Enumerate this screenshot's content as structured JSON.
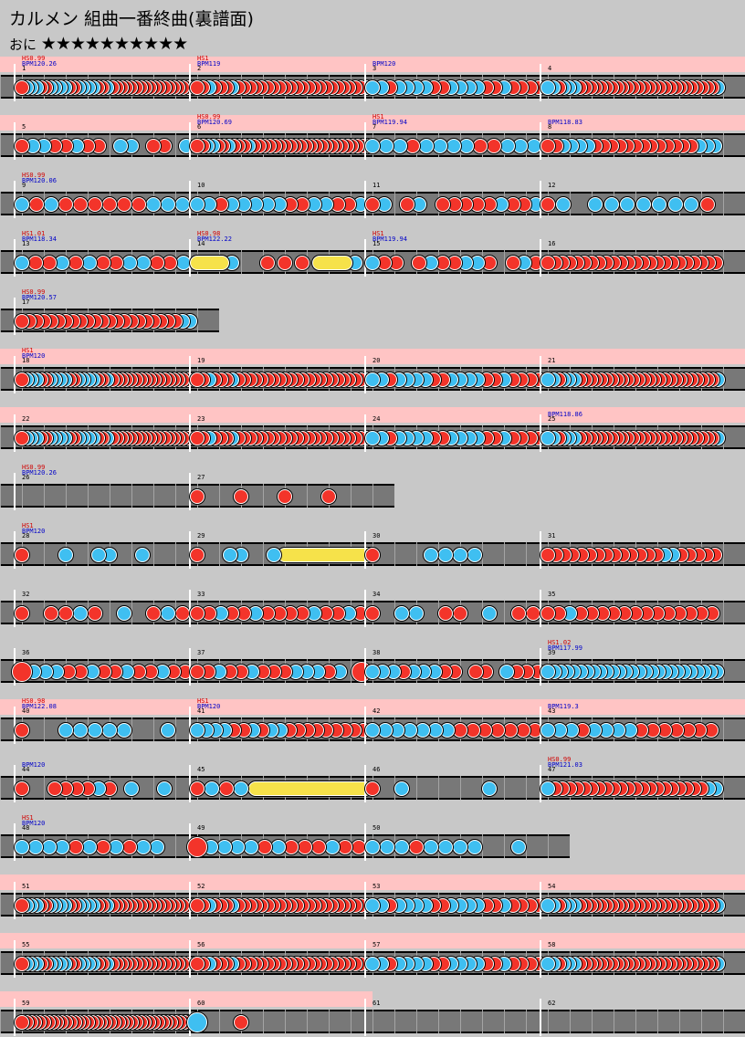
{
  "title": "カルメン 組曲一番終曲(裏譜面)",
  "difficulty": {
    "label": "おに",
    "stars": "★★★★★★★★★★"
  },
  "colors": {
    "don": "#f3342a",
    "ka": "#3fbff1",
    "roll": "#f6e24a",
    "lane": "#787878",
    "gogo": "#ffc4c4"
  },
  "rows": [
    {
      "top": 62,
      "width": 816,
      "gogo": 816,
      "measures": [
        {
          "n": "1",
          "hs": "HS0.99",
          "bpm": "BPM120.26",
          "p": "rbbbrrbbbbrrbbbbrrbrrrrrrrrrrrrrrrrrr"
        },
        {
          "n": "2",
          "hs": "HS1",
          "bpm": "BPM119",
          "p": "rrbrrrbrrrrrrrrrrrrrrrrrrrrrrb"
        },
        {
          "n": "3",
          "bpm": "BPM120",
          "p": "bbrbbbbrrbbbbrrbrrrr"
        },
        {
          "n": "4",
          "p": "bbrbbbrrrrrrrrrrrrrrrrrrrrrrrrrrb"
        }
      ]
    },
    {
      "top": 126,
      "width": 816,
      "gogo": 816,
      "measures": [
        {
          "n": "5",
          "p": "rbbrrbrr.bb.rr.b"
        },
        {
          "n": "6",
          "hs": "HS0.99",
          "bpm": "BPM120.69",
          "p": "rrbbrrbrrrbrrrrrrrrrrrrrrrrrrrrrrr"
        },
        {
          "n": "7",
          "hs": "HS1",
          "bpm": "BPM119.94",
          "p": "bbbrbbbbrrbbb"
        },
        {
          "n": "8",
          "bpm": "BPM118.83",
          "p": "rrbbbbrrrrrrrrrrrrrbbb"
        }
      ]
    },
    {
      "top": 190,
      "width": 816,
      "measures": [
        {
          "n": "9",
          "hs": "HS0.99",
          "bpm": "BPM120.06",
          "p": "brbrrrrrrbbb"
        },
        {
          "n": "10",
          "p": "bbrbbbbbrrbbrrb"
        },
        {
          "n": "11",
          "p": "rb.rb.rrrrrbrrb"
        },
        {
          "n": "12",
          "p": "rb.bbbbbbbr"
        }
      ]
    },
    {
      "top": 254,
      "width": 816,
      "measures": [
        {
          "n": "13",
          "hs": "HS1.01",
          "bpm": "BPM118.34",
          "p": "brrbrbrrbbrrb"
        },
        {
          "n": "14",
          "hs": "HS0.98",
          "bpm": "BPM122.22",
          "p": "Y.b.rrrY.b"
        },
        {
          "n": "15",
          "hs": "HS1",
          "bpm": "BPM119.94",
          "p": "brr.rbrrbbr.rbr"
        },
        {
          "n": "16",
          "p": "rrrrrrrrrrrrrrrrrrrrrrrr"
        }
      ]
    },
    {
      "top": 318,
      "width": 240,
      "measures": [
        {
          "n": "17",
          "hs": "HS0.99",
          "bpm": "BPM120.57",
          "p": "rrrrrrrrrrrrrrrrrrrrrrbb"
        }
      ]
    },
    {
      "top": 382,
      "width": 816,
      "gogo": 816,
      "measures": [
        {
          "n": "18",
          "hs": "HS1",
          "bpm": "BPM120",
          "p": "rbbbrrbbbbrrbbbbrrbrrrrrrrrrrrrrrrrrr"
        },
        {
          "n": "19",
          "p": "rrbrrrbrrrrrrrrrrrrrrrrrrrrrrb"
        },
        {
          "n": "20",
          "p": "bbrbbbbrrbbbbrrbrrrr"
        },
        {
          "n": "21",
          "p": "bbrbbbrrrrrrrrrrrrrrrrrrrrrrrrrrb"
        }
      ]
    },
    {
      "top": 446,
      "width": 816,
      "gogo": 816,
      "measures": [
        {
          "n": "22",
          "p": "rbbbrrbbbbrrbbbbrrbrrrrrrrrrrrrrrrrrr"
        },
        {
          "n": "23",
          "p": "rrbrrrbrrrrrrrrrrrrrrrrrrrrrrb"
        },
        {
          "n": "24",
          "p": "bbrbbbbrrbbbbrrbrrrr"
        },
        {
          "n": "25",
          "bpm": "BPM118.86",
          "p": "bbrbbbrrrrrrrrrrrrrrrrrrrrrrrrrrb"
        }
      ]
    },
    {
      "top": 510,
      "width": 432,
      "measures": [
        {
          "n": "26",
          "hs": "HS0.99",
          "bpm": "BPM120.26",
          "p": "................"
        },
        {
          "n": "27",
          "p": "r...r...r...r..."
        }
      ]
    },
    {
      "top": 574,
      "width": 816,
      "measures": [
        {
          "n": "28",
          "hs": "HS1",
          "bpm": "BPM120",
          "p": "r...b..bb..b...."
        },
        {
          "n": "29",
          "p": "r..bb..bY......."
        },
        {
          "n": "30",
          "p": "r...bbbb...."
        },
        {
          "n": "31",
          "p": "rrrrrrrrrrrrrrbbrrrrr"
        }
      ]
    },
    {
      "top": 638,
      "width": 816,
      "measures": [
        {
          "n": "32",
          "p": "r.rrbr.b.rbr"
        },
        {
          "n": "33",
          "p": "rrbrrbrrrrbrrbr"
        },
        {
          "n": "34",
          "p": "r.bb.rr.b.rr"
        },
        {
          "n": "35",
          "p": "rrbrrrrrrrrrrrrr"
        }
      ]
    },
    {
      "top": 702,
      "width": 816,
      "measures": [
        {
          "n": "36",
          "p": "Rbbbrrbrrbrrbrr"
        },
        {
          "n": "37",
          "p": "rrbrrbrrrbbbrb.R"
        },
        {
          "n": "38",
          "p": "bbbrbbbrr.rr.brrr"
        },
        {
          "n": "39",
          "hs": "HS1.02",
          "bpm": "BPM117.99",
          "p": "bbbbbbbbbbbbbbbbbbbbbbbbbbb"
        }
      ]
    },
    {
      "top": 766,
      "width": 816,
      "gogo": 816,
      "measures": [
        {
          "n": "40",
          "hs": "HS0.98",
          "bpm": "BPM122.08",
          "p": "r..bbbbb..b."
        },
        {
          "n": "41",
          "hs": "HS1",
          "bpm": "BPM120",
          "p": "bbbbrrbrbbrrrrrrrrr"
        },
        {
          "n": "42",
          "p": "bbbbbbbrrrrrrr"
        },
        {
          "n": "43",
          "bpm": "BPM119.3",
          "p": "bbbrbbbbrrrrrrr"
        }
      ]
    },
    {
      "top": 830,
      "width": 816,
      "measures": [
        {
          "n": "44",
          "bpm": "BPM120",
          "p": "r..rrrrbr.b..b.."
        },
        {
          "n": "45",
          "p": "rbrbY......."
        },
        {
          "n": "46",
          "p": "r.b.....b..."
        },
        {
          "n": "47",
          "hs": "HS0.99",
          "bpm": "BPM121.03",
          "p": "brrrrrrrrrrrrrrrrrrrrrbb"
        }
      ]
    },
    {
      "top": 894,
      "width": 624,
      "measures": [
        {
          "n": "48",
          "hs": "HS1",
          "bpm": "BPM120",
          "p": "bbbbrbrbrbb.."
        },
        {
          "n": "49",
          "p": "Rbbbbrbrrrbrr"
        },
        {
          "n": "50",
          "p": "bbbrbbbb..b."
        }
      ]
    },
    {
      "top": 958,
      "width": 816,
      "gogo": 816,
      "measures": [
        {
          "n": "51",
          "p": "rbbbrrbbbbrrbbbbrrbrrrrrrrrrrrrrrrrrr"
        },
        {
          "n": "52",
          "p": "rrbrrrbrrrrrrrrrrrrrrrrrrrrrrb"
        },
        {
          "n": "53",
          "p": "bbrbbbbrrbbbbrrbrrrr"
        },
        {
          "n": "54",
          "p": "bbrbbbrrrrrrrrrrrrrrrrrrrrrrrrrrb"
        }
      ]
    },
    {
      "top": 1022,
      "width": 816,
      "gogo": 816,
      "measures": [
        {
          "n": "55",
          "p": "rbbbrrbbbbrrbbbbrrbrrrrrrrrrrrrrrrrrr"
        },
        {
          "n": "56",
          "p": "rrbrrrbrrrrrrrrrrrrrrrrrrrrrrb"
        },
        {
          "n": "57",
          "p": "bbrbbbbrrbbbbrrbrrrr"
        },
        {
          "n": "58",
          "p": "bbrbbbrrrrrrrrrrrrrrrrrrrrrrrrrrb"
        }
      ]
    },
    {
      "top": 1086,
      "width": 816,
      "gogo": 408,
      "measures": [
        {
          "n": "59",
          "p": "rrrrrrrrrrrrrrrrrrrrrrrrrrrrrrrrrrrrrrrr"
        },
        {
          "n": "60",
          "p": "B...r..........."
        },
        {
          "n": "61",
          "p": "................"
        },
        {
          "n": "62",
          "p": "................"
        }
      ]
    }
  ]
}
